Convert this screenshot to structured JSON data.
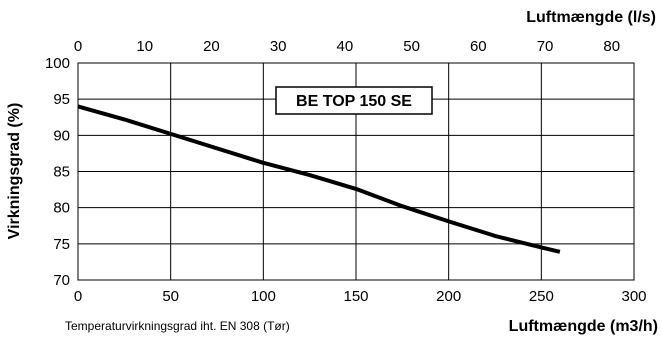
{
  "chart_data": {
    "type": "line",
    "title": "",
    "xlabel": "Luftmængde (m3/h)",
    "x2label": "Luftmængde (l/s)",
    "ylabel": "Virkningsgrad (%)",
    "note": "Temperaturvirkningsgrad iht. EN 308 (Tør)",
    "series_label": "BE TOP 150 SE",
    "xlim": [
      0,
      300
    ],
    "ylim": [
      70,
      100
    ],
    "x_ticks": [
      0,
      50,
      100,
      150,
      200,
      250,
      300
    ],
    "x_tick_labels": [
      "0",
      "50",
      "100",
      "150",
      "200",
      "250",
      "300"
    ],
    "y_ticks": [
      70,
      75,
      80,
      85,
      90,
      95,
      100
    ],
    "y_tick_labels": [
      "70",
      "75",
      "80",
      "85",
      "90",
      "95",
      "100"
    ],
    "x2_ticks": [
      0,
      10,
      20,
      30,
      40,
      50,
      60,
      70,
      80
    ],
    "x2_tick_labels": [
      "0",
      "10",
      "20",
      "30",
      "40",
      "50",
      "60",
      "70",
      "80"
    ],
    "grid": true,
    "series": [
      {
        "x": [
          0,
          25,
          50,
          75,
          100,
          125,
          150,
          175,
          200,
          225,
          250,
          260
        ],
        "y": [
          94.0,
          92.2,
          90.2,
          88.2,
          86.2,
          84.5,
          82.6,
          80.2,
          78.1,
          76.1,
          74.5,
          73.9
        ],
        "color": "#000000"
      }
    ]
  }
}
